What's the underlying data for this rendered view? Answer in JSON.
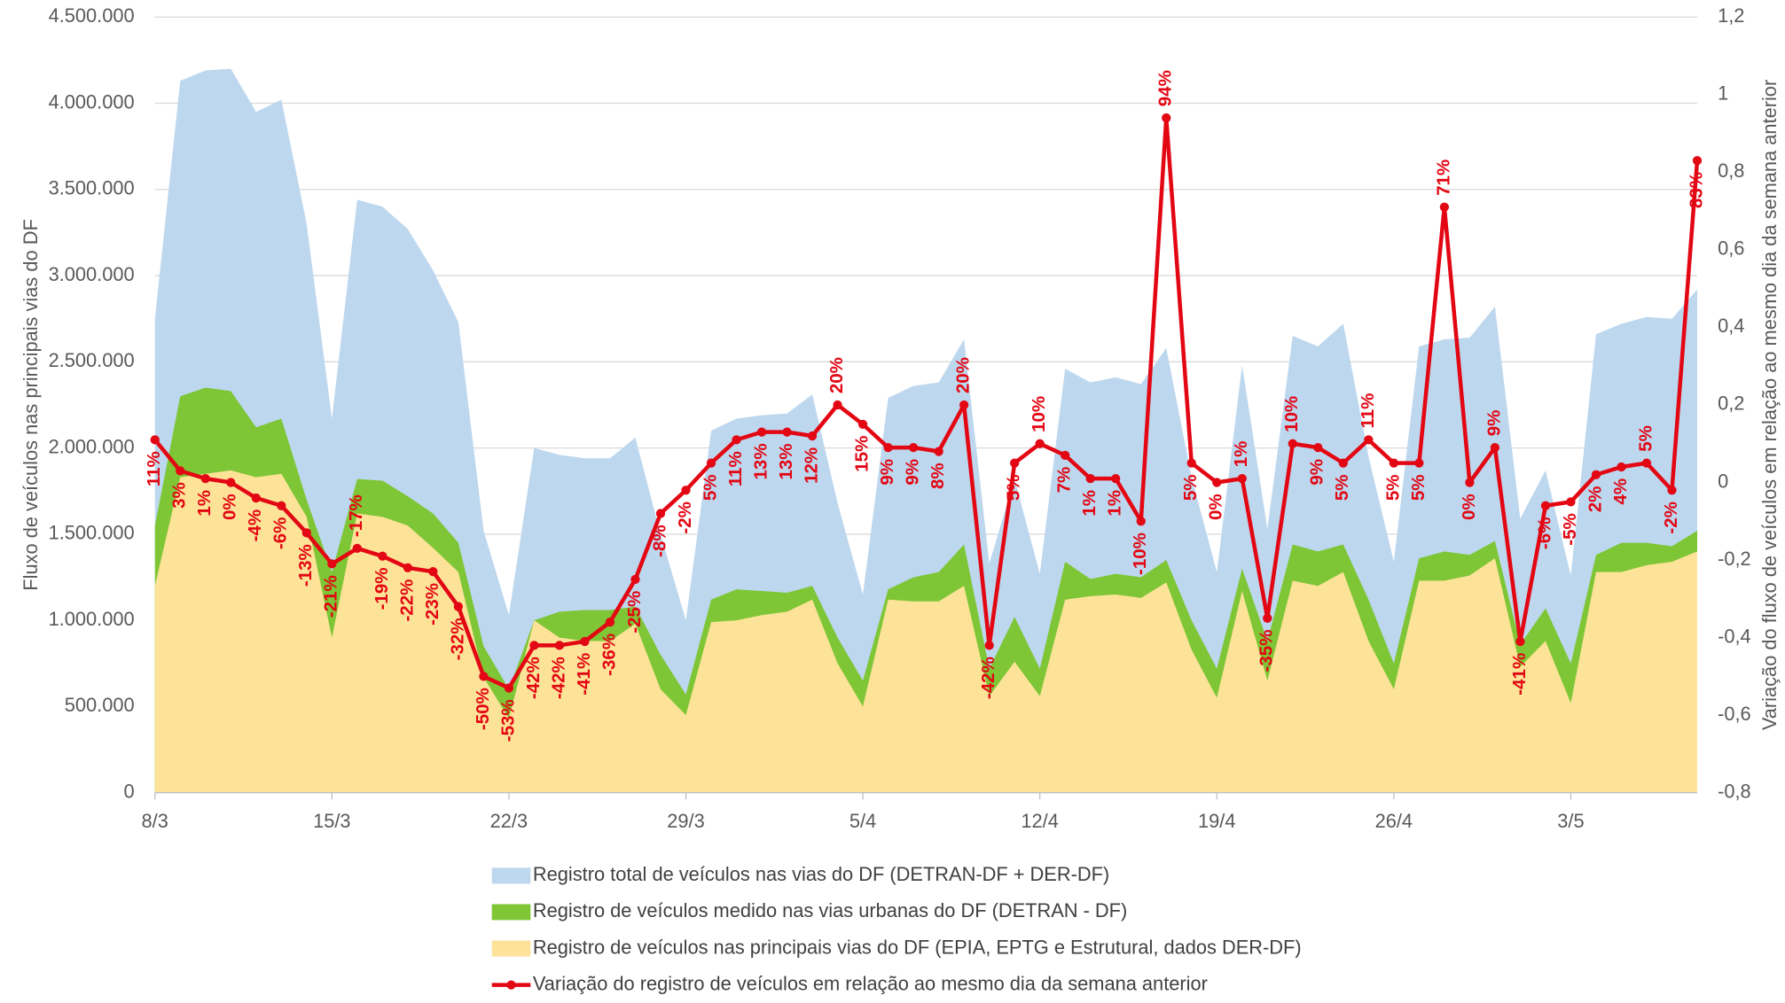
{
  "chart_data": {
    "type": "area",
    "categories": [
      "8/3",
      null,
      null,
      null,
      null,
      null,
      null,
      "15/3",
      null,
      null,
      null,
      null,
      null,
      null,
      "22/3",
      null,
      null,
      null,
      null,
      null,
      null,
      "29/3",
      null,
      null,
      null,
      null,
      null,
      null,
      "5/4",
      null,
      null,
      null,
      null,
      null,
      null,
      "12/4",
      null,
      null,
      null,
      null,
      null,
      null,
      "19/4",
      null,
      null,
      null,
      null,
      null,
      null,
      "26/4",
      null,
      null,
      null,
      null,
      null,
      null,
      "3/5",
      null,
      null,
      null,
      null,
      null
    ],
    "y_label": "Fluxo de veículos nas principais vias do DF",
    "y2_label": "Variação do fluxo de veículos em relação ao mesmo dia da semana anterior",
    "ylim": [
      0,
      4500000
    ],
    "yticks": [
      0,
      {
        "value": 500000,
        "label": "500.000"
      },
      {
        "value": 1000000,
        "label": "1.000.000"
      },
      {
        "value": 1500000,
        "label": "1.500.000"
      },
      {
        "value": 2000000,
        "label": "2.000.000"
      },
      {
        "value": 2500000,
        "label": "2.500.000"
      },
      {
        "value": 3000000,
        "label": "3.000.000"
      },
      {
        "value": 3500000,
        "label": "3.500.000"
      },
      {
        "value": 4000000,
        "label": "4.000.000"
      },
      {
        "value": 4500000,
        "label": "4.500.000"
      }
    ],
    "y2lim": [
      -0.8,
      1.2
    ],
    "y2ticks": [
      {
        "value": -0.8,
        "label": "-0,8"
      },
      {
        "value": -0.6,
        "label": "-0,6"
      },
      {
        "value": -0.4,
        "label": "-0,4"
      },
      {
        "value": -0.2,
        "label": "-0,2"
      },
      0,
      {
        "value": 0.2,
        "label": "0,2"
      },
      {
        "value": 0.4,
        "label": "0,4"
      },
      {
        "value": 0.6,
        "label": "0,6"
      },
      {
        "value": 0.8,
        "label": "0,8"
      },
      1,
      {
        "value": 1.2,
        "label": "1,2"
      }
    ],
    "grid": true,
    "legend": "bottom",
    "series": [
      {
        "name": "Registro total de veículos nas vias do DF (DETRAN-DF + DER-DF)",
        "type": "area",
        "color": "#bdd7ee",
        "values": [
          2750000,
          4130000,
          4190000,
          4200000,
          3950000,
          4020000,
          3300000,
          2170000,
          3440000,
          3400000,
          3270000,
          3030000,
          2730000,
          1520000,
          1030000,
          2000000,
          1960000,
          1940000,
          1940000,
          2060000,
          1500000,
          1000000,
          2100000,
          2170000,
          2190000,
          2200000,
          2310000,
          1680000,
          1150000,
          2290000,
          2360000,
          2380000,
          2630000,
          1330000,
          1820000,
          1270000,
          2460000,
          2380000,
          2410000,
          2370000,
          2580000,
          1830000,
          1280000,
          2480000,
          1530000,
          2650000,
          2590000,
          2720000,
          1950000,
          1340000,
          2590000,
          2630000,
          2640000,
          2820000,
          1590000,
          1870000,
          1260000,
          2660000,
          2720000,
          2760000,
          2750000,
          2920000
        ]
      },
      {
        "name": "Registro de veículos medido nas vias urbanas do DF (DETRAN - DF)",
        "type": "area",
        "color": "#7ec636",
        "values": [
          1550000,
          2300000,
          2350000,
          2330000,
          2120000,
          2170000,
          1700000,
          1280000,
          1820000,
          1810000,
          1720000,
          1620000,
          1450000,
          850000,
          600000,
          1000000,
          1050000,
          1060000,
          1060000,
          1080000,
          800000,
          570000,
          1120000,
          1180000,
          1170000,
          1160000,
          1200000,
          900000,
          650000,
          1180000,
          1250000,
          1280000,
          1440000,
          720000,
          1020000,
          720000,
          1340000,
          1240000,
          1270000,
          1250000,
          1350000,
          1000000,
          720000,
          1300000,
          880000,
          1440000,
          1400000,
          1440000,
          1120000,
          750000,
          1360000,
          1400000,
          1380000,
          1460000,
          860000,
          1070000,
          750000,
          1380000,
          1450000,
          1450000,
          1430000,
          1520000
        ]
      },
      {
        "name": "Registro de veículos nas principais vias do DF (EPIA, EPTG e Estrutural, dados DER-DF)",
        "type": "area",
        "color": "#fde398",
        "values": [
          1200000,
          1830000,
          1850000,
          1870000,
          1830000,
          1850000,
          1600000,
          900000,
          1620000,
          1600000,
          1550000,
          1420000,
          1280000,
          670000,
          430000,
          1000000,
          900000,
          880000,
          880000,
          980000,
          600000,
          450000,
          990000,
          1000000,
          1030000,
          1050000,
          1120000,
          750000,
          500000,
          1120000,
          1110000,
          1110000,
          1200000,
          560000,
          760000,
          560000,
          1120000,
          1140000,
          1150000,
          1130000,
          1220000,
          830000,
          550000,
          1170000,
          650000,
          1230000,
          1200000,
          1280000,
          880000,
          600000,
          1230000,
          1230000,
          1260000,
          1360000,
          730000,
          880000,
          520000,
          1280000,
          1280000,
          1320000,
          1340000,
          1400000
        ]
      },
      {
        "name": "Variação do registro de veículos em relação ao mesmo dia da semana anterior",
        "type": "line",
        "axis": "y2",
        "color": "#e30613",
        "values": [
          0.11,
          0.03,
          0.01,
          0,
          -0.04,
          -0.06,
          -0.13,
          -0.21,
          -0.17,
          -0.19,
          -0.22,
          -0.23,
          -0.32,
          -0.5,
          -0.53,
          -0.42,
          -0.42,
          -0.41,
          -0.36,
          -0.25,
          -0.08,
          -0.02,
          0.05,
          0.11,
          0.13,
          0.13,
          0.12,
          0.2,
          0.15,
          0.09,
          0.09,
          0.08,
          0.2,
          -0.42,
          0.05,
          0.1,
          0.07,
          0.01,
          0.01,
          -0.1,
          0.94,
          0.05,
          0,
          0.01,
          -0.35,
          0.1,
          0.09,
          0.05,
          0.11,
          0.05,
          0.05,
          0.71,
          0,
          0.09,
          -0.41,
          -0.06,
          -0.05,
          0.02,
          0.04,
          0.05,
          -0.02,
          0.83
        ],
        "value_labels": [
          "11%",
          "3%",
          "1%",
          "0%",
          "-4%",
          "-6%",
          "-13%",
          "-21%",
          "-17%",
          "-19%",
          "-22%",
          "-23%",
          "-32%",
          "-50%",
          "-53%",
          "-42%",
          "-42%",
          "-41%",
          "-36%",
          "-25%",
          "-8%",
          "-2%",
          "5%",
          "11%",
          "13%",
          "13%",
          "12%",
          "20%",
          "15%",
          "9%",
          "9%",
          "8%",
          "20%",
          "-42%",
          "5%",
          "10%",
          "7%",
          "1%",
          "1%",
          "-10%",
          "94%",
          "5%",
          "0%",
          "1%",
          "-35%",
          "10%",
          "9%",
          "5%",
          "11%",
          "5%",
          "5%",
          "71%",
          "0%",
          "9%",
          "-41%",
          "-6%",
          "-5%",
          "2%",
          "4%",
          "5%",
          "-2%",
          "83%"
        ]
      }
    ]
  }
}
